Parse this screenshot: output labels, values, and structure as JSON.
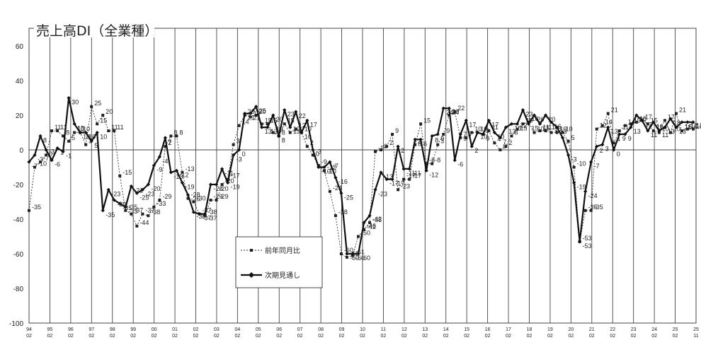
{
  "chart_data": {
    "type": "line",
    "title": "売上高DI（全業種）",
    "ylim": [
      -100,
      60
    ],
    "yticks": [
      60,
      40,
      20,
      0,
      -20,
      -40,
      -60,
      -80,
      -100
    ],
    "x_tick_labels": [
      {
        "year": "94",
        "month": "02"
      },
      {
        "year": "95",
        "month": "02"
      },
      {
        "year": "96",
        "month": "02"
      },
      {
        "year": "97",
        "month": "02"
      },
      {
        "year": "98",
        "month": "02"
      },
      {
        "year": "99",
        "month": "02"
      },
      {
        "year": "00",
        "month": "02"
      },
      {
        "year": "01",
        "month": "02"
      },
      {
        "year": "02",
        "month": "02"
      },
      {
        "year": "03",
        "month": "02"
      },
      {
        "year": "04",
        "month": "02"
      },
      {
        "year": "05",
        "month": "02"
      },
      {
        "year": "06",
        "month": "02"
      },
      {
        "year": "07",
        "month": "02"
      },
      {
        "year": "08",
        "month": "02"
      },
      {
        "year": "09",
        "month": "02"
      },
      {
        "year": "10",
        "month": "02"
      },
      {
        "year": "11",
        "month": "02"
      },
      {
        "year": "12",
        "month": "02"
      },
      {
        "year": "13",
        "month": "02"
      },
      {
        "year": "14",
        "month": "02"
      },
      {
        "year": "15",
        "month": "02"
      },
      {
        "year": "16",
        "month": "02"
      },
      {
        "year": "17",
        "month": "02"
      },
      {
        "year": "18",
        "month": "02"
      },
      {
        "year": "19",
        "month": "02"
      },
      {
        "year": "20",
        "month": "02"
      },
      {
        "year": "21",
        "month": "02"
      },
      {
        "year": "22",
        "month": "02"
      },
      {
        "year": "23",
        "month": "02"
      },
      {
        "year": "24",
        "month": "02"
      },
      {
        "year": "25",
        "month": "02"
      },
      {
        "year": "25",
        "month": "11"
      }
    ],
    "grid": "vertical lines at each year, horizontal zero line",
    "legend_position": "center-left box",
    "series": [
      {
        "name": "前年同月比",
        "style": "dotted thin line with square markers",
        "color": "#333333",
        "values": [
          -35,
          -10,
          -7,
          -3,
          11,
          11,
          8,
          5,
          10,
          10,
          3,
          25,
          15,
          20,
          11,
          11,
          -15,
          -35,
          -37,
          -44,
          -37,
          -38,
          -33,
          -29,
          2,
          8,
          8,
          -13,
          -28,
          -30,
          -37,
          -38,
          -29,
          -29,
          -20,
          -17,
          3,
          14,
          20,
          19,
          20,
          15,
          15,
          10,
          8,
          15,
          10,
          12,
          10,
          2,
          -3,
          -9,
          -12,
          -24,
          -38,
          -60,
          -62,
          -61,
          -50,
          -46,
          -42,
          -1,
          0,
          2,
          9,
          -23,
          -17,
          -17,
          3,
          15,
          -8,
          -8,
          3,
          9,
          20,
          22,
          7,
          7,
          10,
          10,
          9,
          11,
          4,
          0,
          2,
          8,
          12,
          15,
          16,
          10,
          11,
          11,
          10,
          10,
          10,
          5,
          -10,
          -53,
          -35,
          -35,
          12,
          14,
          21,
          4,
          11,
          14,
          15,
          16,
          17,
          15,
          11,
          10,
          17,
          10,
          21,
          11,
          12,
          12
        ]
      },
      {
        "name": "次期見通し",
        "style": "thick solid line with diamond markers",
        "color": "#111111",
        "values": [
          -7,
          -3,
          8,
          0,
          -6,
          1,
          -1,
          30,
          15,
          10,
          10,
          5,
          10,
          -35,
          -23,
          -29,
          -31,
          -33,
          -21,
          -25,
          -23,
          -20,
          -9,
          -4,
          7,
          -13,
          -12,
          -19,
          -26,
          -36,
          -37,
          -37,
          -20,
          -20,
          -11,
          -19,
          -3,
          0,
          21,
          21,
          25,
          13,
          13,
          20,
          8,
          23,
          13,
          22,
          10,
          17,
          0,
          -10,
          -10,
          -7,
          -16,
          -25,
          -60,
          -60,
          -60,
          -42,
          -38,
          -23,
          -13,
          -17,
          -17,
          2,
          -11,
          -11,
          6,
          6,
          -12,
          8,
          9,
          24,
          24,
          -6,
          9,
          17,
          2,
          10,
          9,
          17,
          10,
          7,
          13,
          15,
          15,
          23,
          15,
          20,
          15,
          20,
          16,
          13,
          7,
          -3,
          -19,
          -53,
          -24,
          -7,
          2,
          3,
          13,
          0,
          9,
          9,
          13,
          20,
          17,
          11,
          16,
          11,
          13,
          18,
          13,
          16,
          16,
          16
        ]
      }
    ]
  }
}
